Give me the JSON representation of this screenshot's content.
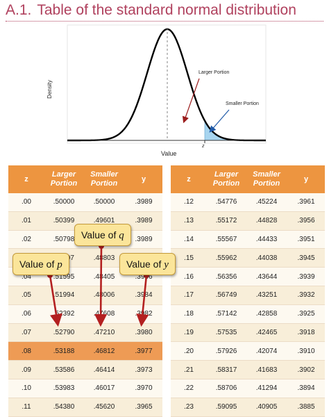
{
  "heading": {
    "number": "A.1.",
    "text": "Table of the standard normal distribution"
  },
  "figure": {
    "ylabel": "Density",
    "xlabel": "Value",
    "z_label": "z",
    "larger_label": "Larger Portion",
    "smaller_label": "Smaller Portion",
    "colors": {
      "curve": "#000000",
      "shade": "#a8d5ef",
      "arrow_larger": "#9b1c1c",
      "arrow_smaller": "#1f5aa8"
    }
  },
  "table": {
    "headers": {
      "z": "z",
      "larger": "Larger Portion",
      "smaller": "Smaller Portion",
      "y": "y"
    },
    "highlight_z": ".08",
    "colors": {
      "header": "#ed9540",
      "row_light": "#fdf9f0",
      "row_dark": "#f8eed9",
      "row_highlight": "#ee9b55"
    },
    "left": [
      [
        ".00",
        ".50000",
        ".50000",
        ".3989"
      ],
      [
        ".01",
        ".50399",
        ".49601",
        ".3989"
      ],
      [
        ".02",
        ".50798",
        ".49202",
        ".3989"
      ],
      [
        ".03",
        ".51197",
        ".48803",
        ".3988"
      ],
      [
        ".04",
        ".51595",
        ".48405",
        ".3986"
      ],
      [
        ".05",
        ".51994",
        ".48006",
        ".3984"
      ],
      [
        ".06",
        ".52392",
        ".47608",
        ".3982"
      ],
      [
        ".07",
        ".52790",
        ".47210",
        ".3980"
      ],
      [
        ".08",
        ".53188",
        ".46812",
        ".3977"
      ],
      [
        ".09",
        ".53586",
        ".46414",
        ".3973"
      ],
      [
        ".10",
        ".53983",
        ".46017",
        ".3970"
      ],
      [
        ".11",
        ".54380",
        ".45620",
        ".3965"
      ]
    ],
    "right": [
      [
        ".12",
        ".54776",
        ".45224",
        ".3961"
      ],
      [
        ".13",
        ".55172",
        ".44828",
        ".3956"
      ],
      [
        ".14",
        ".55567",
        ".44433",
        ".3951"
      ],
      [
        ".15",
        ".55962",
        ".44038",
        ".3945"
      ],
      [
        ".16",
        ".56356",
        ".43644",
        ".3939"
      ],
      [
        ".17",
        ".56749",
        ".43251",
        ".3932"
      ],
      [
        ".18",
        ".57142",
        ".42858",
        ".3925"
      ],
      [
        ".19",
        ".57535",
        ".42465",
        ".3918"
      ],
      [
        ".20",
        ".57926",
        ".42074",
        ".3910"
      ],
      [
        ".21",
        ".58317",
        ".41683",
        ".3902"
      ],
      [
        ".22",
        ".58706",
        ".41294",
        ".3894"
      ],
      [
        ".23",
        ".59095",
        ".40905",
        ".3885"
      ]
    ]
  },
  "callouts": {
    "q": {
      "prefix": "Value of ",
      "var": "q"
    },
    "p": {
      "prefix": "Value of ",
      "var": "p"
    },
    "y": {
      "prefix": "Value of ",
      "var": "y"
    },
    "arrow_color": "#b32020"
  }
}
